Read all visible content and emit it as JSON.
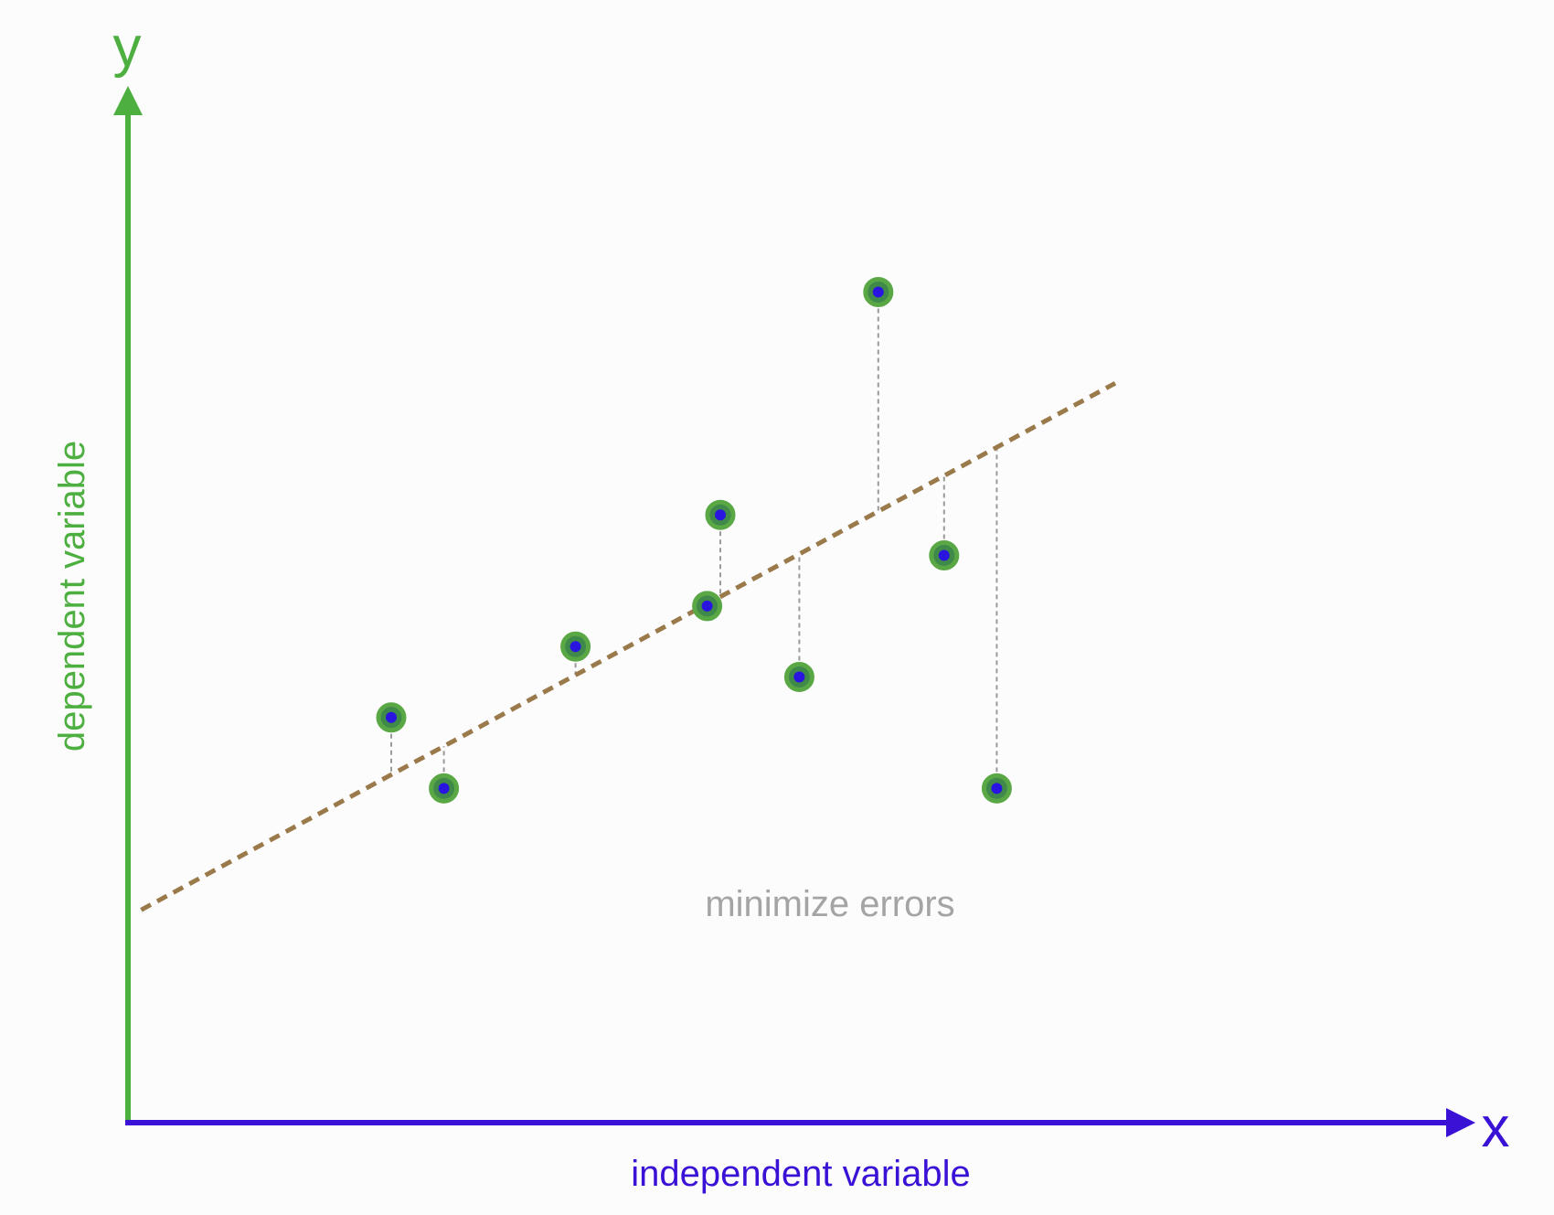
{
  "labels": {
    "y_axis_letter": "y",
    "x_axis_letter": "x",
    "y_axis_title": "dependent variable",
    "x_axis_title": "independent variable",
    "annotation": "minimize errors"
  },
  "colors": {
    "y_axis": "#4caf3f",
    "x_axis": "#3a12d6",
    "regression_line": "#9a7a4a",
    "residual_line": "#9a9a9a",
    "point_fill": "#2a14e0",
    "point_ring": "#5aa845",
    "annotation_text": "#a4a4a4",
    "background": "#fcfcfc"
  },
  "chart_data": {
    "type": "scatter",
    "xlim": [
      0,
      100
    ],
    "ylim": [
      0,
      100
    ],
    "regression_line": {
      "x0": 1,
      "y0": 21,
      "x1": 75,
      "y1": 73
    },
    "points": [
      {
        "x": 20,
        "y": 40
      },
      {
        "x": 24,
        "y": 33
      },
      {
        "x": 34,
        "y": 47
      },
      {
        "x": 44,
        "y": 51
      },
      {
        "x": 45,
        "y": 60
      },
      {
        "x": 51,
        "y": 44
      },
      {
        "x": 57,
        "y": 82
      },
      {
        "x": 62,
        "y": 56
      },
      {
        "x": 66,
        "y": 33
      }
    ]
  }
}
